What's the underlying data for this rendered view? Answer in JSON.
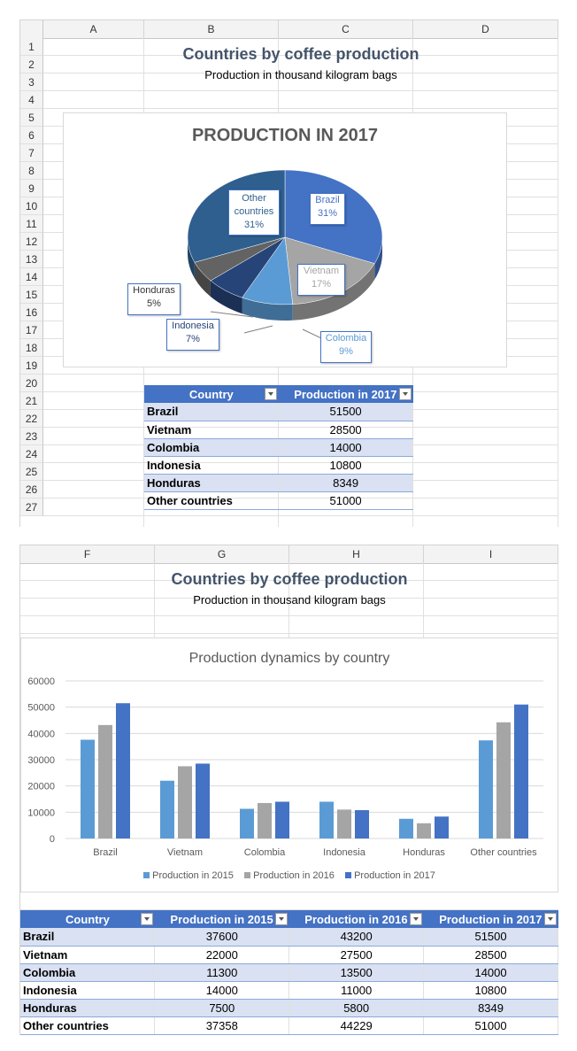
{
  "sheet1": {
    "columns": [
      "A",
      "B",
      "C",
      "D"
    ],
    "rows": [
      "1",
      "2",
      "3",
      "4",
      "5",
      "6",
      "7",
      "8",
      "9",
      "10",
      "11",
      "12",
      "13",
      "14",
      "15",
      "16",
      "17",
      "18",
      "19",
      "20",
      "21",
      "22",
      "23",
      "24",
      "25",
      "26",
      "27"
    ],
    "title": "Countries by coffee production",
    "subtitle": "Production in thousand kilogram bags",
    "table": {
      "headers": [
        "Country",
        "Production in 2017"
      ],
      "rows": [
        {
          "country": "Brazil",
          "p2017": "51500"
        },
        {
          "country": "Vietnam",
          "p2017": "28500"
        },
        {
          "country": "Colombia",
          "p2017": "14000"
        },
        {
          "country": "Indonesia",
          "p2017": "10800"
        },
        {
          "country": "Honduras",
          "p2017": "8349"
        },
        {
          "country": "Other countries",
          "p2017": "51000"
        }
      ]
    }
  },
  "sheet2": {
    "columns": [
      "F",
      "G",
      "H",
      "I"
    ],
    "title": "Countries by coffee production",
    "subtitle": "Production in thousand kilogram bags",
    "table": {
      "headers": [
        "Country",
        "Production in 2015",
        "Production in 2016",
        "Production in 2017"
      ],
      "rows": [
        {
          "country": "Brazil",
          "p2015": "37600",
          "p2016": "43200",
          "p2017": "51500"
        },
        {
          "country": "Vietnam",
          "p2015": "22000",
          "p2016": "27500",
          "p2017": "28500"
        },
        {
          "country": "Colombia",
          "p2015": "11300",
          "p2016": "13500",
          "p2017": "14000"
        },
        {
          "country": "Indonesia",
          "p2015": "14000",
          "p2016": "11000",
          "p2017": "10800"
        },
        {
          "country": "Honduras",
          "p2015": "7500",
          "p2016": "5800",
          "p2017": "8349"
        },
        {
          "country": "Other countries",
          "p2015": "37358",
          "p2016": "44229",
          "p2017": "51000"
        }
      ]
    }
  },
  "chart_data": [
    {
      "type": "pie",
      "title": "PRODUCTION IN 2017",
      "labels": [
        "Brazil",
        "Vietnam",
        "Colombia",
        "Indonesia",
        "Honduras",
        "Other countries"
      ],
      "values": [
        51500,
        28500,
        14000,
        10800,
        8349,
        51000
      ],
      "percent_labels": [
        "31%",
        "17%",
        "9%",
        "7%",
        "5%",
        "31%"
      ],
      "colors": [
        "#4472c4",
        "#a5a5a5",
        "#5b9bd5",
        "#264478",
        "#636363",
        "#2e5f8f"
      ]
    },
    {
      "type": "bar",
      "title": "Production dynamics by country",
      "categories": [
        "Brazil",
        "Vietnam",
        "Colombia",
        "Indonesia",
        "Honduras",
        "Other countries"
      ],
      "series": [
        {
          "name": "Production in 2015",
          "values": [
            37600,
            22000,
            11300,
            14000,
            7500,
            37358
          ],
          "color": "#5b9bd5"
        },
        {
          "name": "Production in 2016",
          "values": [
            43200,
            27500,
            13500,
            11000,
            5800,
            44229
          ],
          "color": "#a5a5a5"
        },
        {
          "name": "Production in 2017",
          "values": [
            51500,
            28500,
            14000,
            10800,
            8349,
            51000
          ],
          "color": "#4472c4"
        }
      ],
      "ylim": [
        0,
        60000
      ],
      "yticks": [
        "0",
        "10000",
        "20000",
        "30000",
        "40000",
        "50000",
        "60000"
      ],
      "legend": "bottom"
    }
  ]
}
